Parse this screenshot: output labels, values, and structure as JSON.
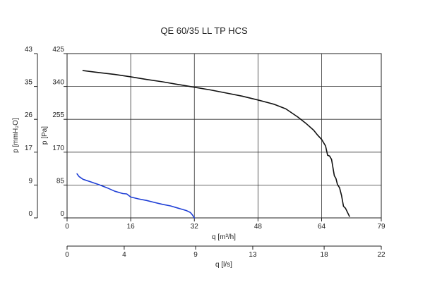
{
  "chart_data": {
    "type": "line",
    "title": "QE 60/35 LL TP HCS",
    "xlabel": "q [m³/h]",
    "xlabel2": "q [l/s]",
    "ylabel": "p [Pa]",
    "ylabel2": "p [mmH₂O]",
    "xlim": [
      0,
      79
    ],
    "ylim": [
      0,
      425
    ],
    "x_ticks": [
      "0",
      "16",
      "32",
      "48",
      "64",
      "79"
    ],
    "x_tick_values": [
      0,
      16,
      32,
      48,
      64,
      79
    ],
    "y_ticks": [
      "0",
      "85",
      "170",
      "255",
      "340",
      "425"
    ],
    "y_tick_values": [
      0,
      85,
      170,
      255,
      340,
      425
    ],
    "x2_ticks": [
      "0",
      "4",
      "9",
      "13",
      "18",
      "22"
    ],
    "x2_tick_values": [
      0,
      4,
      9,
      13,
      18,
      22
    ],
    "x2lim": [
      0,
      22
    ],
    "y2_ticks": [
      "0",
      "9",
      "17",
      "26",
      "35",
      "43"
    ],
    "grid": true,
    "series": [
      {
        "color": "#111111",
        "x": [
          4.0,
          8.0,
          12.0,
          16.0,
          20.0,
          24.0,
          28.0,
          32.0,
          36.0,
          40.0,
          44.0,
          48.0,
          52.0,
          55.0,
          58.0,
          60.0,
          62.0,
          63.0,
          64.0,
          65.0,
          65.5,
          66.0,
          66.5,
          67.2,
          67.6,
          68.0,
          68.5,
          69.0,
          69.5,
          70.0,
          71.0
        ],
        "y": [
          381,
          376,
          371,
          365,
          358,
          352,
          345,
          338,
          331,
          323,
          315,
          305,
          294,
          282,
          261,
          245,
          227,
          214,
          203,
          186,
          162,
          160,
          151,
          109,
          102,
          86,
          78,
          58,
          30,
          25,
          4
        ]
      },
      {
        "color": "#1f3fd6",
        "x": [
          2.5,
          3.0,
          4.0,
          6.0,
          8.0,
          10.0,
          12.0,
          14.0,
          15.0,
          16.0,
          18.0,
          20.0,
          22.0,
          24.0,
          26.0,
          28.0,
          30.0,
          31.0,
          31.5,
          32.0
        ],
        "y": [
          114,
          107,
          100,
          93,
          86,
          78,
          69,
          63,
          62,
          54,
          49,
          45,
          40,
          35,
          31,
          25,
          19,
          14,
          8,
          0
        ]
      }
    ]
  }
}
